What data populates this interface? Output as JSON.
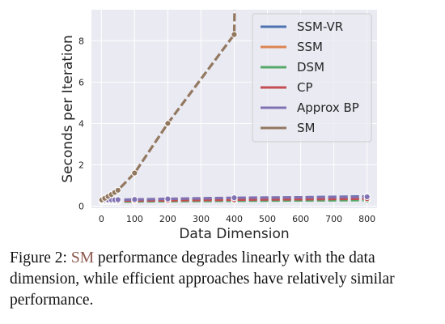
{
  "chart_data": {
    "type": "line",
    "xlabel": "Data Dimension",
    "ylabel": "Seconds per Iteration",
    "xlim": [
      -30,
      830
    ],
    "ylim": [
      -0.1,
      9.5
    ],
    "xticks": [
      0,
      100,
      200,
      300,
      400,
      500,
      600,
      700,
      800
    ],
    "yticks": [
      0,
      2,
      4,
      6,
      8
    ],
    "grid": true,
    "legend_position": "top-right",
    "series": [
      {
        "name": "SSM-VR",
        "color": "#4c72b0",
        "x": [
          1,
          10,
          20,
          30,
          40,
          50,
          100,
          200,
          400,
          800
        ],
        "y": [
          0.3,
          0.3,
          0.3,
          0.3,
          0.3,
          0.3,
          0.31,
          0.33,
          0.38,
          0.47
        ]
      },
      {
        "name": "SSM",
        "color": "#dd8452",
        "x": [
          1,
          10,
          20,
          30,
          40,
          50,
          100,
          200,
          400,
          800
        ],
        "y": [
          0.28,
          0.28,
          0.28,
          0.28,
          0.28,
          0.28,
          0.29,
          0.3,
          0.33,
          0.38
        ]
      },
      {
        "name": "DSM",
        "color": "#55a868",
        "x": [
          1,
          10,
          20,
          30,
          40,
          50,
          100,
          200,
          400,
          800
        ],
        "y": [
          0.22,
          0.22,
          0.22,
          0.22,
          0.22,
          0.22,
          0.23,
          0.24,
          0.26,
          0.29
        ]
      },
      {
        "name": "CP",
        "color": "#c44e52",
        "x": [
          1,
          10,
          20,
          30,
          40,
          50,
          100,
          200,
          400,
          800
        ],
        "y": [
          0.26,
          0.26,
          0.26,
          0.26,
          0.26,
          0.26,
          0.27,
          0.28,
          0.31,
          0.36
        ]
      },
      {
        "name": "Approx BP",
        "color": "#8172b3",
        "x": [
          1,
          10,
          20,
          30,
          40,
          50,
          100,
          200,
          400,
          800
        ],
        "y": [
          0.3,
          0.3,
          0.3,
          0.3,
          0.3,
          0.31,
          0.32,
          0.35,
          0.4,
          0.45
        ]
      },
      {
        "name": "SM",
        "color": "#937860",
        "x": [
          1,
          10,
          20,
          30,
          40,
          50,
          100,
          200,
          400,
          401
        ],
        "y": [
          0.3,
          0.38,
          0.47,
          0.56,
          0.66,
          0.77,
          1.6,
          4.0,
          8.3,
          9.5
        ]
      }
    ]
  },
  "caption": {
    "prefix": "Figure 2: ",
    "highlight": "SM",
    "rest": " performance degrades linearly with the data dimension, while efficient approaches have relatively similar performance."
  }
}
